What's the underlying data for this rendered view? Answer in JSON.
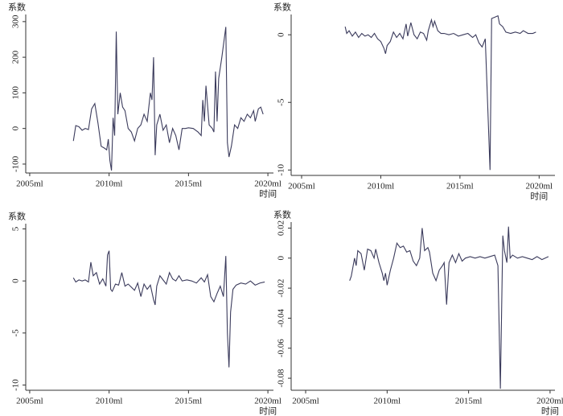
{
  "chart_data": [
    {
      "type": "line",
      "y_label": "系数",
      "x_label": "时间",
      "color": "#3b3b5c",
      "xlim": [
        2004.75,
        2020.35
      ],
      "xticks": [
        {
          "value": 2005,
          "label": "2005ml"
        },
        {
          "value": 2010,
          "label": "2010ml"
        },
        {
          "value": 2015,
          "label": "2015ml"
        },
        {
          "value": 2020,
          "label": "2020ml"
        }
      ],
      "ylim": [
        -125,
        320
      ],
      "yticks": [
        300,
        200,
        100,
        0,
        -100
      ],
      "x": [
        2007.75,
        2007.9,
        2008.1,
        2008.3,
        2008.5,
        2008.7,
        2008.9,
        2009.1,
        2009.3,
        2009.5,
        2009.7,
        2009.85,
        2009.95,
        2010.05,
        2010.15,
        2010.25,
        2010.35,
        2010.45,
        2010.55,
        2010.7,
        2010.85,
        2011.0,
        2011.2,
        2011.4,
        2011.6,
        2011.8,
        2012.0,
        2012.2,
        2012.4,
        2012.6,
        2012.7,
        2012.8,
        2012.9,
        2013.0,
        2013.2,
        2013.4,
        2013.6,
        2013.8,
        2014.0,
        2014.2,
        2014.4,
        2014.6,
        2014.8,
        2015.0,
        2015.3,
        2015.6,
        2015.8,
        2015.9,
        2016.0,
        2016.1,
        2016.3,
        2016.5,
        2016.6,
        2016.7,
        2016.8,
        2016.9,
        2017.1,
        2017.35,
        2017.45,
        2017.55,
        2017.7,
        2017.9,
        2018.1,
        2018.3,
        2018.5,
        2018.7,
        2018.9,
        2019.1,
        2019.2,
        2019.4,
        2019.55,
        2019.7
      ],
      "values": [
        -35,
        8,
        5,
        -5,
        0,
        -3,
        55,
        70,
        15,
        -50,
        -55,
        -60,
        -30,
        -90,
        -118,
        30,
        -20,
        272,
        40,
        100,
        60,
        50,
        0,
        -10,
        -35,
        0,
        10,
        40,
        20,
        100,
        80,
        200,
        -75,
        10,
        40,
        -5,
        10,
        -40,
        0,
        -20,
        -60,
        0,
        0,
        2,
        0,
        -10,
        -20,
        80,
        20,
        120,
        10,
        0,
        -10,
        160,
        20,
        140,
        200,
        285,
        -40,
        -80,
        -50,
        10,
        0,
        30,
        20,
        40,
        30,
        50,
        20,
        55,
        60,
        40
      ]
    },
    {
      "type": "line",
      "y_label": "系数",
      "x_label": "时间",
      "color": "#3b3b5c",
      "xlim": [
        2004.34,
        2021.0
      ],
      "xticks": [
        {
          "value": 2005,
          "label": "2005ml"
        },
        {
          "value": 2010,
          "label": "2010ml"
        },
        {
          "value": 2015,
          "label": "2015ml"
        },
        {
          "value": 2020,
          "label": "2020ml"
        }
      ],
      "ylim": [
        -10.4,
        1.5
      ],
      "yticks": [
        0,
        -5,
        -10
      ],
      "x": [
        2007.75,
        2007.85,
        2008,
        2008.2,
        2008.4,
        2008.6,
        2008.8,
        2009,
        2009.2,
        2009.4,
        2009.6,
        2009.8,
        2010,
        2010.2,
        2010.3,
        2010.4,
        2010.6,
        2010.8,
        2011,
        2011.2,
        2011.4,
        2011.6,
        2011.7,
        2011.9,
        2012.1,
        2012.3,
        2012.5,
        2012.7,
        2012.9,
        2013,
        2013.2,
        2013.3,
        2013.4,
        2013.6,
        2013.8,
        2014,
        2014.3,
        2014.6,
        2014.9,
        2015.2,
        2015.5,
        2015.8,
        2016,
        2016.2,
        2016.4,
        2016.6,
        2016.9,
        2017.0,
        2017.2,
        2017.4,
        2017.5,
        2017.7,
        2017.9,
        2018.2,
        2018.5,
        2018.8,
        2019,
        2019.3,
        2019.6,
        2019.8
      ],
      "values": [
        0.6,
        0.1,
        0.3,
        -0.1,
        0.2,
        -0.2,
        0.1,
        -0.1,
        0,
        -0.2,
        0.1,
        -0.3,
        -0.5,
        -1.0,
        -1.4,
        -0.8,
        -0.5,
        0.2,
        -0.2,
        0.1,
        -0.3,
        0.8,
        -0.1,
        0.9,
        0,
        -0.3,
        0.2,
        0.1,
        -0.4,
        0.3,
        1.1,
        0.6,
        1.0,
        0.3,
        0.1,
        0.1,
        0,
        0.1,
        -0.1,
        0,
        0.1,
        -0.2,
        0,
        -0.6,
        -0.9,
        -0.3,
        -10,
        1.2,
        1.3,
        1.4,
        0.8,
        0.6,
        0.2,
        0.1,
        0.2,
        0.1,
        0.3,
        0.1,
        0.1,
        0.2
      ]
    },
    {
      "type": "line",
      "y_label": "系数",
      "x_label": "时间",
      "color": "#3b3b5c",
      "xlim": [
        2004.75,
        2020.35
      ],
      "xticks": [
        {
          "value": 2005,
          "label": "2005ml"
        },
        {
          "value": 2010,
          "label": "2010ml"
        },
        {
          "value": 2015,
          "label": "2015ml"
        },
        {
          "value": 2020,
          "label": "2020ml"
        }
      ],
      "ylim": [
        -10.5,
        5.5
      ],
      "yticks": [
        5,
        0,
        -5,
        -10
      ],
      "x": [
        2007.75,
        2007.9,
        2008.1,
        2008.3,
        2008.5,
        2008.7,
        2008.85,
        2009,
        2009.2,
        2009.4,
        2009.6,
        2009.8,
        2009.9,
        2010.0,
        2010.1,
        2010.2,
        2010.4,
        2010.6,
        2010.8,
        2011,
        2011.2,
        2011.4,
        2011.6,
        2011.8,
        2012,
        2012.2,
        2012.4,
        2012.6,
        2012.8,
        2012.9,
        2013.0,
        2013.2,
        2013.4,
        2013.6,
        2013.8,
        2014,
        2014.2,
        2014.4,
        2014.6,
        2014.9,
        2015.2,
        2015.5,
        2015.8,
        2016,
        2016.2,
        2016.4,
        2016.6,
        2016.8,
        2017.0,
        2017.2,
        2017.35,
        2017.45,
        2017.55,
        2017.65,
        2017.8,
        2018,
        2018.3,
        2018.6,
        2018.9,
        2019.2,
        2019.5,
        2019.8
      ],
      "values": [
        0.3,
        -0.1,
        0.1,
        0,
        0.1,
        -0.1,
        1.8,
        0.5,
        0.8,
        -0.3,
        0.2,
        -0.5,
        2.5,
        2.9,
        -0.8,
        -1.0,
        -0.3,
        -0.4,
        0.8,
        -0.5,
        -0.3,
        -0.6,
        -0.9,
        -0.2,
        -1.5,
        -0.3,
        -0.8,
        -0.4,
        -1.8,
        -2.3,
        -0.5,
        0.5,
        0.1,
        -0.3,
        0.8,
        0.2,
        0,
        0.5,
        0,
        0.1,
        0,
        -0.2,
        0.3,
        -0.1,
        0.6,
        -1.5,
        -2.0,
        -1.2,
        -0.5,
        -1.5,
        2.4,
        -5.0,
        -8.3,
        -3.0,
        -0.8,
        -0.4,
        -0.2,
        -0.3,
        0,
        -0.4,
        -0.2,
        -0.1
      ]
    },
    {
      "type": "line",
      "y_label": "系数",
      "x_label": "时间",
      "color": "#3b3b5c",
      "xlim": [
        2004.11,
        2020.3
      ],
      "xticks": [
        {
          "value": 2005,
          "label": "2005ml"
        },
        {
          "value": 2010,
          "label": "2010ml"
        },
        {
          "value": 2015,
          "label": "2015ml"
        },
        {
          "value": 2020,
          "label": "2020ml"
        }
      ],
      "ylim": [
        -0.088,
        0.024
      ],
      "yticks": [
        0.02,
        0,
        -0.02,
        -0.04,
        -0.06,
        -0.08
      ],
      "x": [
        2007.7,
        2007.8,
        2008,
        2008.1,
        2008.2,
        2008.4,
        2008.6,
        2008.8,
        2009,
        2009.2,
        2009.3,
        2009.5,
        2009.7,
        2009.8,
        2009.9,
        2010.0,
        2010.2,
        2010.4,
        2010.6,
        2010.8,
        2011,
        2011.2,
        2011.4,
        2011.6,
        2011.8,
        2012,
        2012.15,
        2012.3,
        2012.5,
        2012.6,
        2012.8,
        2013,
        2013.2,
        2013.4,
        2013.5,
        2013.65,
        2013.8,
        2014,
        2014.2,
        2014.4,
        2014.6,
        2014.8,
        2015.1,
        2015.4,
        2015.7,
        2016,
        2016.3,
        2016.6,
        2016.8,
        2016.95,
        2017.1,
        2017.2,
        2017.35,
        2017.45,
        2017.55,
        2017.7,
        2018,
        2018.3,
        2018.6,
        2018.9,
        2019.2,
        2019.5,
        2019.9
      ],
      "values": [
        -0.015,
        -0.012,
        0,
        -0.005,
        0.005,
        0.003,
        -0.008,
        0.006,
        0.005,
        0,
        0.006,
        -0.003,
        -0.01,
        -0.015,
        -0.01,
        -0.018,
        -0.008,
        0,
        0.01,
        0.007,
        0.008,
        0.004,
        0.005,
        -0.002,
        -0.005,
        0,
        0.02,
        0.005,
        0.007,
        0.004,
        -0.01,
        -0.015,
        -0.008,
        -0.005,
        -0.003,
        -0.031,
        -0.003,
        0.002,
        -0.003,
        0.003,
        -0.002,
        0,
        0.001,
        0,
        0.001,
        0,
        0.001,
        0.002,
        -0.005,
        -0.087,
        0.015,
        0.005,
        -0.003,
        0.021,
        0,
        0.002,
        0,
        0.001,
        0,
        -0.001,
        0.001,
        -0.001,
        0.001
      ]
    }
  ]
}
